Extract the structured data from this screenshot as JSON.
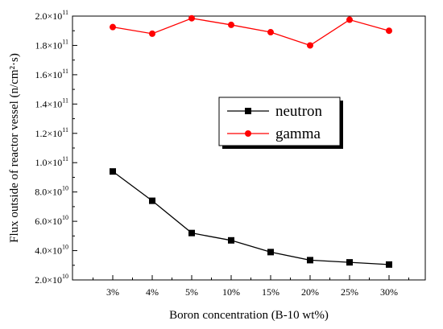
{
  "chart_data": {
    "type": "line",
    "xlabel": "Boron concentration (B-10 wt%)",
    "ylabel": "Flux outside of reactor vessel (n/cm²·s)",
    "categories": [
      "3%",
      "4%",
      "5%",
      "10%",
      "15%",
      "20%",
      "25%",
      "30%"
    ],
    "ylim": [
      20000000000.0,
      200000000000.0
    ],
    "y_ticks": [
      {
        "value": 20000000000.0,
        "mantissa": "2.0×10",
        "exp": "10"
      },
      {
        "value": 40000000000.0,
        "mantissa": "4.0×10",
        "exp": "10"
      },
      {
        "value": 60000000000.0,
        "mantissa": "6.0×10",
        "exp": "10"
      },
      {
        "value": 80000000000.0,
        "mantissa": "8.0×10",
        "exp": "10"
      },
      {
        "value": 100000000000.0,
        "mantissa": "1.0×10",
        "exp": "11"
      },
      {
        "value": 120000000000.0,
        "mantissa": "1.2×10",
        "exp": "11"
      },
      {
        "value": 140000000000.0,
        "mantissa": "1.4×10",
        "exp": "11"
      },
      {
        "value": 160000000000.0,
        "mantissa": "1.6×10",
        "exp": "11"
      },
      {
        "value": 180000000000.0,
        "mantissa": "1.8×10",
        "exp": "11"
      },
      {
        "value": 200000000000.0,
        "mantissa": "2.0×10",
        "exp": "11"
      }
    ],
    "series": [
      {
        "name": "neutron",
        "color": "#000000",
        "marker": "square",
        "values": [
          94000000000.0,
          74000000000.0,
          52000000000.0,
          47000000000.0,
          39000000000.0,
          33500000000.0,
          32000000000.0,
          30500000000.0
        ]
      },
      {
        "name": "gamma",
        "color": "#ff0000",
        "marker": "circle",
        "values": [
          192500000000.0,
          188000000000.0,
          198500000000.0,
          194000000000.0,
          189000000000.0,
          180000000000.0,
          197500000000.0,
          190000000000.0
        ]
      }
    ],
    "legend_position": "right-upper",
    "grid": false
  }
}
